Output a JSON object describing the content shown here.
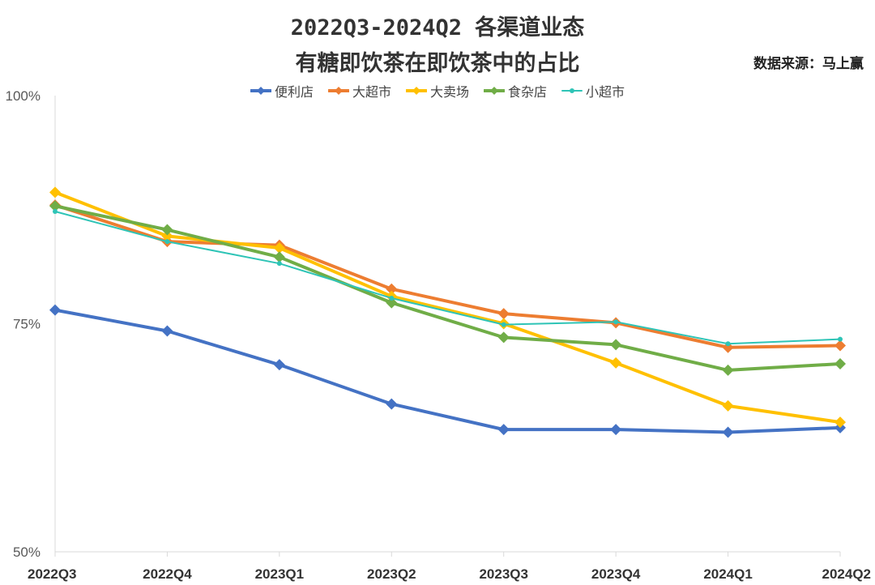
{
  "title_line1": "2022Q3-2024Q2 各渠道业态",
  "title_line2": "有糖即饮茶在即饮茶中的占比",
  "source": "数据来源：马上赢",
  "chart_data": {
    "type": "line",
    "title": "2022Q3-2024Q2 各渠道业态 有糖即饮茶在即饮茶中的占比",
    "categories": [
      "2022Q3",
      "2022Q4",
      "2023Q1",
      "2023Q2",
      "2023Q3",
      "2023Q4",
      "2024Q1",
      "2024Q2"
    ],
    "ylim": [
      50,
      100
    ],
    "yticks": [
      50,
      75,
      100
    ],
    "ytick_labels": [
      "50%",
      "75%",
      "100%"
    ],
    "xlabel": "",
    "ylabel": "",
    "legend_position": "top",
    "grid": false,
    "series": [
      {
        "name": "便利店",
        "color": "#4472C4",
        "marker": "diamond",
        "values": [
          76.5,
          74.2,
          70.5,
          66.2,
          63.4,
          63.4,
          63.1,
          63.6
        ]
      },
      {
        "name": "大超市",
        "color": "#ED7D31",
        "marker": "diamond",
        "values": [
          88.0,
          84.0,
          83.6,
          78.8,
          76.1,
          75.1,
          72.4,
          72.6
        ]
      },
      {
        "name": "大卖场",
        "color": "#FFC000",
        "marker": "diamond",
        "values": [
          89.4,
          84.6,
          83.3,
          78.0,
          75.0,
          70.7,
          66.0,
          64.2
        ]
      },
      {
        "name": "食杂店",
        "color": "#70AD47",
        "marker": "diamond",
        "values": [
          87.9,
          85.3,
          82.3,
          77.3,
          73.5,
          72.7,
          69.9,
          70.6
        ]
      },
      {
        "name": "小超市",
        "color": "#2EC4B6",
        "marker": "circle",
        "values": [
          87.3,
          84.0,
          81.6,
          77.8,
          74.9,
          75.2,
          72.8,
          73.3
        ]
      }
    ]
  }
}
